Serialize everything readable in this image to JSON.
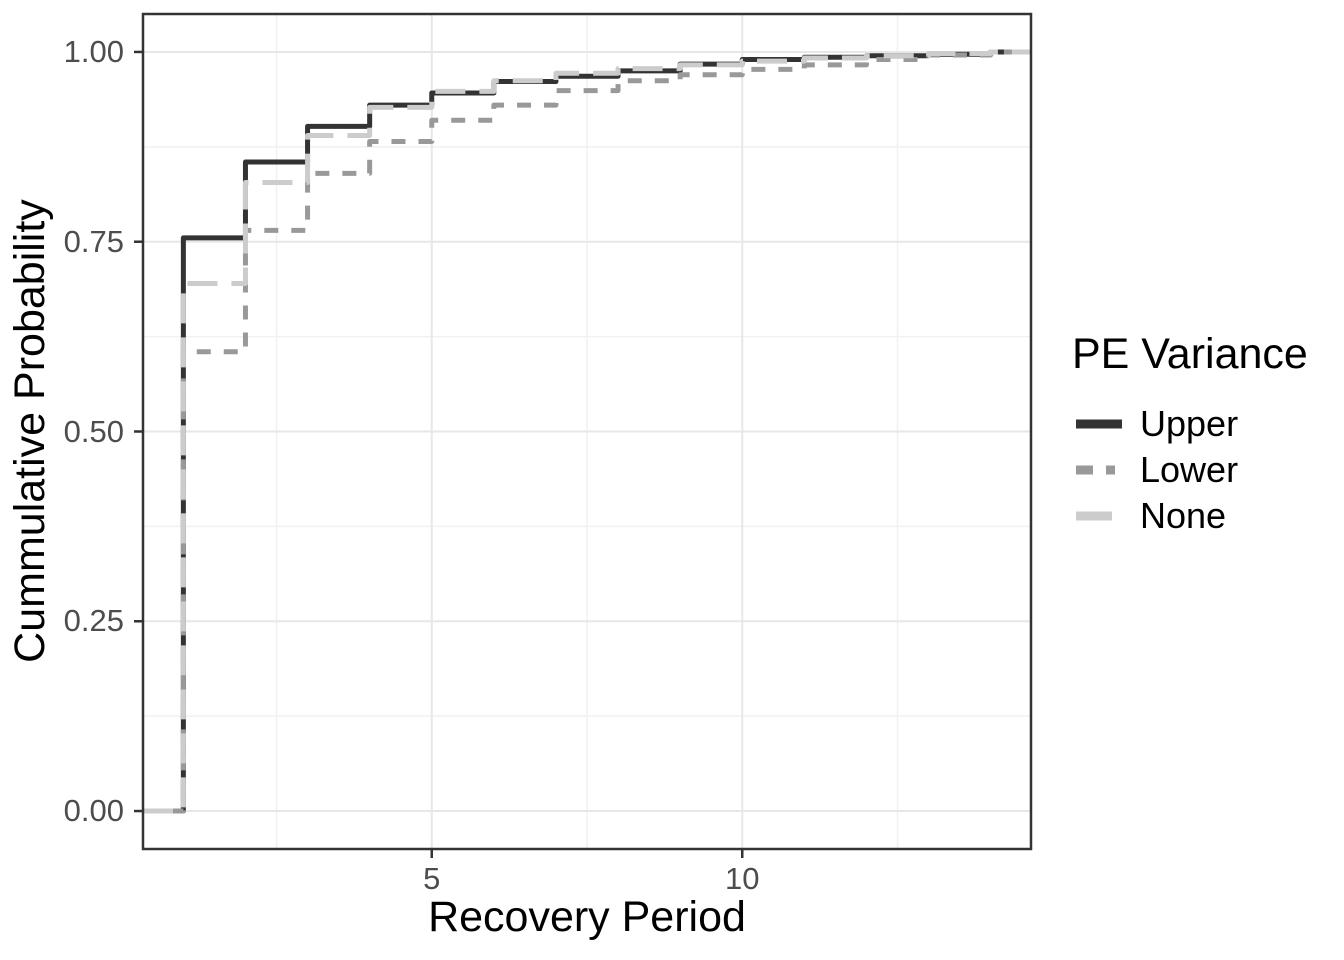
{
  "figure": {
    "x_axis": {
      "title": "Recovery Period",
      "ticks": [
        "5",
        "10"
      ],
      "tick_values": [
        5,
        10
      ]
    },
    "y_axis": {
      "title": "Cummulative Probability",
      "ticks": [
        "0.00",
        "0.25",
        "0.50",
        "0.75",
        "1.00"
      ],
      "tick_values": [
        0,
        0.25,
        0.5,
        0.75,
        1.0
      ]
    },
    "legend": {
      "title": "PE Variance",
      "items": [
        "Upper",
        "Lower",
        "None"
      ]
    },
    "colors": {
      "panel_border": "#333333",
      "grid_major": "#e7e7e7",
      "grid_minor": "#f1f1f1",
      "tick_mark": "#333333",
      "tick_text": "#4d4d4d",
      "title_text": "#000000"
    }
  },
  "chart_data": {
    "type": "line",
    "subtype": "ecdf-step",
    "title": "",
    "xlabel": "Recovery Period",
    "ylabel": "Cummulative Probability",
    "x": [
      1,
      2,
      3,
      4,
      5,
      6,
      7,
      8,
      9,
      10,
      11,
      12,
      13,
      14
    ],
    "series": [
      {
        "name": "Upper",
        "color": "#333333",
        "dash": "",
        "legend_dash": "",
        "values": [
          0.755,
          0.855,
          0.902,
          0.93,
          0.946,
          0.961,
          0.968,
          0.975,
          0.984,
          0.99,
          0.993,
          0.995,
          0.997,
          1.0
        ]
      },
      {
        "name": "Lower",
        "color": "#999999",
        "dash": "14 13",
        "legend_dash": "17 13 9 20",
        "values": [
          0.605,
          0.765,
          0.84,
          0.882,
          0.91,
          0.93,
          0.949,
          0.962,
          0.97,
          0.977,
          0.983,
          0.99,
          0.996,
          1.0
        ]
      },
      {
        "name": "None",
        "color": "#cccccc",
        "dash": "30 14",
        "legend_dash": "36 12",
        "values": [
          0.695,
          0.828,
          0.89,
          0.927,
          0.948,
          0.962,
          0.972,
          0.978,
          0.983,
          0.988,
          0.992,
          0.995,
          0.998,
          1.0
        ]
      }
    ],
    "xlim": [
      0.35,
      14.65
    ],
    "ylim": [
      -0.05,
      1.05
    ],
    "x_major": [
      5,
      10
    ],
    "x_minor": [
      2.5,
      7.5,
      12.5
    ],
    "y_major": [
      0,
      0.25,
      0.5,
      0.75,
      1.0
    ],
    "y_minor": [
      0.125,
      0.375,
      0.625,
      0.875
    ],
    "grid": true,
    "legend_position": "right"
  }
}
